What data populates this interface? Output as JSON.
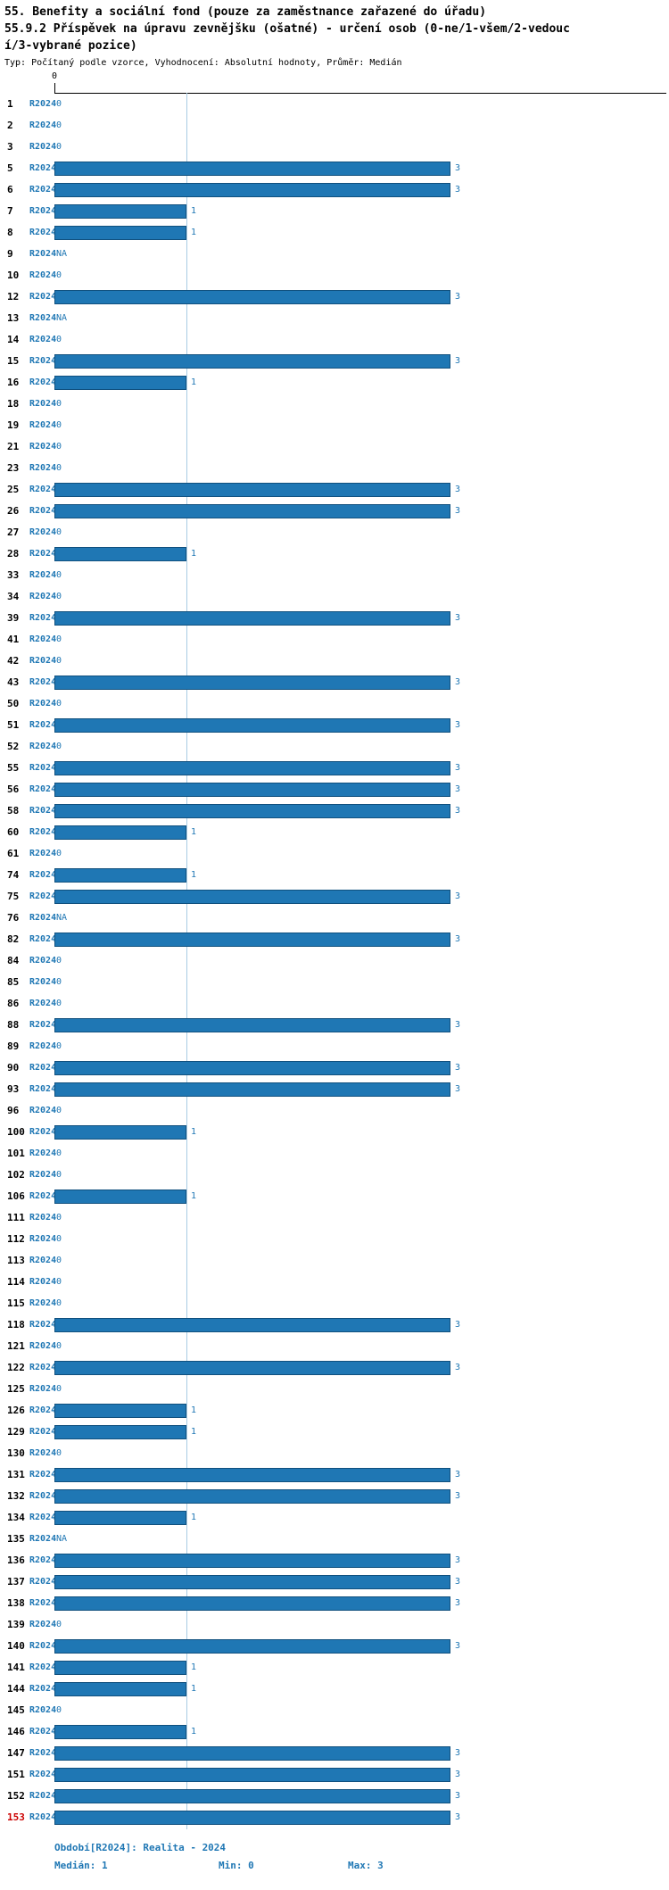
{
  "title": {
    "line1": "55. Benefity a sociální fond (pouze za zaměstnance zařazené do úřadu)",
    "line2": "55.9.2 Příspěvek na úpravu zevnějšku (ošatné) - určení osob (0-ne/1-všem/2-vedoucí/3-vybrané pozice)",
    "line3": "Typ: Počítaný podle vzorce, Vyhodnocení: Absolutní hodnoty, Průměr: Medián"
  },
  "axis": {
    "origin_tick": "0"
  },
  "footer": {
    "period": "Období[R2024]: Realita - 2024",
    "median": "Medián: 1",
    "min": "Min: 0",
    "max": "Max: 3"
  },
  "colors": {
    "bar": "#1f77b4",
    "bar_edge": "#10507e",
    "text_blue": "#1f77b4",
    "median_line": "#a9cce3",
    "highlight_row": "#cc0000",
    "axis": "#000000"
  },
  "chart_data": {
    "type": "bar",
    "orientation": "horizontal",
    "title": "55. Benefity a sociální fond (pouze za zaměstnance zařazené do úřadu)",
    "subtitle": "55.9.2 Příspěvek na úpravu zevnějšku (ošatné) - určení osob (0-ne/1-všem/2-vedoucí/3-vybrané pozice)",
    "meta": "Typ: Počítaný podle vzorce, Vyhodnocení: Absolutní hodnoty, Průměr: Medián",
    "series_label": "R2024",
    "na_label": "NA",
    "x_ticks": [
      "0"
    ],
    "xlim": [
      0,
      3.5
    ],
    "median": 1,
    "min": 0,
    "max": 3,
    "median_gridline_value": 1,
    "highlight_row_id": "153",
    "rows": [
      {
        "id": "1",
        "value": 0
      },
      {
        "id": "2",
        "value": 0
      },
      {
        "id": "3",
        "value": 0
      },
      {
        "id": "5",
        "value": 3
      },
      {
        "id": "6",
        "value": 3
      },
      {
        "id": "7",
        "value": 1
      },
      {
        "id": "8",
        "value": 1
      },
      {
        "id": "9",
        "value": "NA"
      },
      {
        "id": "10",
        "value": 0
      },
      {
        "id": "12",
        "value": 3
      },
      {
        "id": "13",
        "value": "NA"
      },
      {
        "id": "14",
        "value": 0
      },
      {
        "id": "15",
        "value": 3
      },
      {
        "id": "16",
        "value": 1
      },
      {
        "id": "18",
        "value": 0
      },
      {
        "id": "19",
        "value": 0
      },
      {
        "id": "21",
        "value": 0
      },
      {
        "id": "23",
        "value": 0
      },
      {
        "id": "25",
        "value": 3
      },
      {
        "id": "26",
        "value": 3
      },
      {
        "id": "27",
        "value": 0
      },
      {
        "id": "28",
        "value": 1
      },
      {
        "id": "33",
        "value": 0
      },
      {
        "id": "34",
        "value": 0
      },
      {
        "id": "39",
        "value": 3
      },
      {
        "id": "41",
        "value": 0
      },
      {
        "id": "42",
        "value": 0
      },
      {
        "id": "43",
        "value": 3
      },
      {
        "id": "50",
        "value": 0
      },
      {
        "id": "51",
        "value": 3
      },
      {
        "id": "52",
        "value": 0
      },
      {
        "id": "55",
        "value": 3
      },
      {
        "id": "56",
        "value": 3
      },
      {
        "id": "58",
        "value": 3
      },
      {
        "id": "60",
        "value": 1
      },
      {
        "id": "61",
        "value": 0
      },
      {
        "id": "74",
        "value": 1
      },
      {
        "id": "75",
        "value": 3
      },
      {
        "id": "76",
        "value": "NA"
      },
      {
        "id": "82",
        "value": 3
      },
      {
        "id": "84",
        "value": 0
      },
      {
        "id": "85",
        "value": 0
      },
      {
        "id": "86",
        "value": 0
      },
      {
        "id": "88",
        "value": 3
      },
      {
        "id": "89",
        "value": 0
      },
      {
        "id": "90",
        "value": 3
      },
      {
        "id": "93",
        "value": 3
      },
      {
        "id": "96",
        "value": 0
      },
      {
        "id": "100",
        "value": 1
      },
      {
        "id": "101",
        "value": 0
      },
      {
        "id": "102",
        "value": 0
      },
      {
        "id": "106",
        "value": 1
      },
      {
        "id": "111",
        "value": 0
      },
      {
        "id": "112",
        "value": 0
      },
      {
        "id": "113",
        "value": 0
      },
      {
        "id": "114",
        "value": 0
      },
      {
        "id": "115",
        "value": 0
      },
      {
        "id": "118",
        "value": 3
      },
      {
        "id": "121",
        "value": 0
      },
      {
        "id": "122",
        "value": 3
      },
      {
        "id": "125",
        "value": 0
      },
      {
        "id": "126",
        "value": 1
      },
      {
        "id": "129",
        "value": 1
      },
      {
        "id": "130",
        "value": 0
      },
      {
        "id": "131",
        "value": 3
      },
      {
        "id": "132",
        "value": 3
      },
      {
        "id": "134",
        "value": 1
      },
      {
        "id": "135",
        "value": "NA"
      },
      {
        "id": "136",
        "value": 3
      },
      {
        "id": "137",
        "value": 3
      },
      {
        "id": "138",
        "value": 3
      },
      {
        "id": "139",
        "value": 0
      },
      {
        "id": "140",
        "value": 3
      },
      {
        "id": "141",
        "value": 1
      },
      {
        "id": "144",
        "value": 1
      },
      {
        "id": "145",
        "value": 0
      },
      {
        "id": "146",
        "value": 1
      },
      {
        "id": "147",
        "value": 3
      },
      {
        "id": "151",
        "value": 3
      },
      {
        "id": "152",
        "value": 3
      },
      {
        "id": "153",
        "value": 3
      }
    ]
  }
}
